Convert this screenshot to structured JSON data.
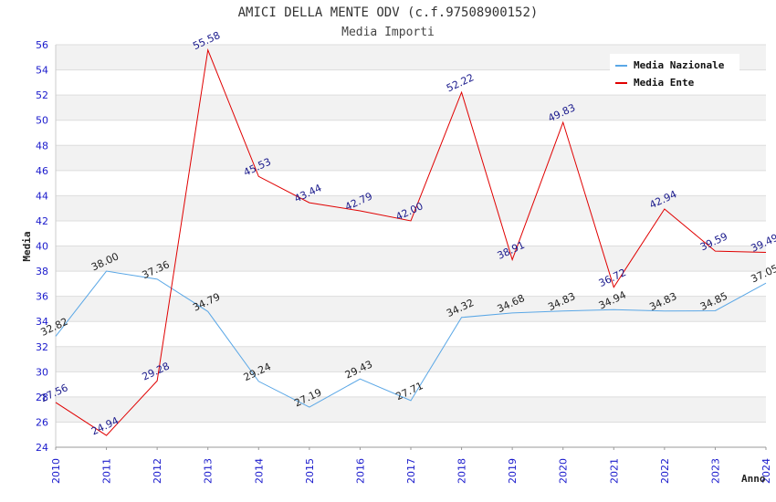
{
  "chart_data": {
    "type": "line",
    "title": "AMICI DELLA MENTE ODV (c.f.97508900152)",
    "subtitle": "Media Importi",
    "xlabel": "Anno",
    "ylabel": "Media",
    "ylim": [
      24,
      56
    ],
    "yticks": [
      "24",
      "26",
      "28",
      "30",
      "32",
      "34",
      "36",
      "38",
      "40",
      "42",
      "44",
      "46",
      "48",
      "50",
      "52",
      "54",
      "56"
    ],
    "categories": [
      "2010",
      "2011",
      "2012",
      "2013",
      "2014",
      "2015",
      "2016",
      "2017",
      "2018",
      "2019",
      "2020",
      "2021",
      "2022",
      "2023",
      "2024"
    ],
    "legend_position": "top-right",
    "series": [
      {
        "name": "Media Nazionale",
        "color": "#5aa7e6",
        "values": [
          32.82,
          38.0,
          37.36,
          34.79,
          29.24,
          27.19,
          29.43,
          27.71,
          34.32,
          34.68,
          34.83,
          34.94,
          34.83,
          34.85,
          37.05
        ],
        "labels": [
          "32.82",
          "38.00",
          "37.36",
          "34.79",
          "29.24",
          "27.19",
          "29.43",
          "27.71",
          "34.32",
          "34.68",
          "34.83",
          "34.94",
          "34.83",
          "34.85",
          "37.05"
        ]
      },
      {
        "name": "Media Ente",
        "color": "#e00000",
        "values": [
          27.56,
          24.94,
          29.28,
          55.58,
          45.53,
          43.44,
          42.79,
          42.0,
          52.22,
          38.91,
          49.83,
          36.72,
          42.94,
          39.59,
          39.49
        ],
        "labels": [
          "27.56",
          "24.94",
          "29.28",
          "55.58",
          "45.53",
          "43.44",
          "42.79",
          "42.00",
          "52.22",
          "38.91",
          "49.83",
          "36.72",
          "42.94",
          "39.59",
          "39.49"
        ]
      }
    ]
  }
}
